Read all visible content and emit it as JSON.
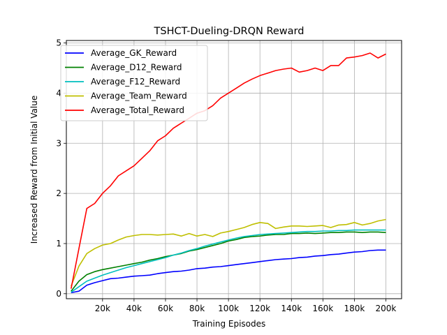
{
  "chart_data": {
    "type": "line",
    "title": "TSHCT-Dueling-DRQN Reward",
    "xlabel": "Training Episodes",
    "ylabel": "Increased Reward from Initial Value",
    "xlim": [
      -3000,
      210000
    ],
    "ylim": [
      -0.1,
      5.05
    ],
    "x_ticks": [
      {
        "value": 20000,
        "label": "20k"
      },
      {
        "value": 40000,
        "label": "40k"
      },
      {
        "value": 60000,
        "label": "60k"
      },
      {
        "value": 80000,
        "label": "80k"
      },
      {
        "value": 100000,
        "label": "100k"
      },
      {
        "value": 120000,
        "label": "120k"
      },
      {
        "value": 140000,
        "label": "140k"
      },
      {
        "value": 160000,
        "label": "160k"
      },
      {
        "value": 180000,
        "label": "180k"
      },
      {
        "value": 200000,
        "label": "200k"
      }
    ],
    "y_ticks": [
      {
        "value": 0,
        "label": "0"
      },
      {
        "value": 1,
        "label": "1"
      },
      {
        "value": 2,
        "label": "2"
      },
      {
        "value": 3,
        "label": "3"
      },
      {
        "value": 4,
        "label": "4"
      },
      {
        "value": 5,
        "label": "5"
      }
    ],
    "grid": true,
    "legend_position": "top-left",
    "x": [
      0,
      5000,
      10000,
      15000,
      20000,
      25000,
      30000,
      35000,
      40000,
      45000,
      50000,
      55000,
      60000,
      65000,
      70000,
      75000,
      80000,
      85000,
      90000,
      95000,
      100000,
      105000,
      110000,
      115000,
      120000,
      125000,
      130000,
      135000,
      140000,
      145000,
      150000,
      155000,
      160000,
      165000,
      170000,
      175000,
      180000,
      185000,
      190000,
      195000,
      200000
    ],
    "series": [
      {
        "name": "Average_GK_Reward",
        "color": "#0000ff",
        "values": [
          0.02,
          0.05,
          0.17,
          0.22,
          0.26,
          0.3,
          0.31,
          0.33,
          0.35,
          0.36,
          0.37,
          0.4,
          0.42,
          0.44,
          0.45,
          0.47,
          0.5,
          0.51,
          0.53,
          0.54,
          0.56,
          0.58,
          0.6,
          0.62,
          0.64,
          0.66,
          0.68,
          0.69,
          0.7,
          0.72,
          0.73,
          0.75,
          0.76,
          0.78,
          0.79,
          0.81,
          0.83,
          0.84,
          0.86,
          0.87,
          0.87
        ]
      },
      {
        "name": "Average_D12_Reward",
        "color": "#008000",
        "values": [
          0.05,
          0.25,
          0.38,
          0.44,
          0.48,
          0.51,
          0.54,
          0.57,
          0.6,
          0.63,
          0.67,
          0.7,
          0.74,
          0.77,
          0.8,
          0.85,
          0.88,
          0.92,
          0.96,
          1.0,
          1.05,
          1.08,
          1.12,
          1.14,
          1.15,
          1.17,
          1.18,
          1.18,
          1.2,
          1.2,
          1.21,
          1.2,
          1.21,
          1.22,
          1.22,
          1.23,
          1.23,
          1.22,
          1.23,
          1.23,
          1.22
        ]
      },
      {
        "name": "Average_F12_Reward",
        "color": "#00bfbf",
        "values": [
          0.03,
          0.14,
          0.25,
          0.31,
          0.37,
          0.42,
          0.47,
          0.52,
          0.56,
          0.6,
          0.64,
          0.68,
          0.72,
          0.77,
          0.81,
          0.86,
          0.9,
          0.95,
          0.99,
          1.03,
          1.07,
          1.11,
          1.14,
          1.16,
          1.18,
          1.19,
          1.2,
          1.21,
          1.22,
          1.23,
          1.24,
          1.24,
          1.25,
          1.25,
          1.26,
          1.26,
          1.27,
          1.27,
          1.27,
          1.27,
          1.27
        ]
      },
      {
        "name": "Average_Team_Reward",
        "color": "#bfbf00",
        "values": [
          0.15,
          0.55,
          0.8,
          0.9,
          0.97,
          1.0,
          1.07,
          1.13,
          1.16,
          1.18,
          1.18,
          1.17,
          1.18,
          1.19,
          1.15,
          1.2,
          1.15,
          1.18,
          1.14,
          1.21,
          1.24,
          1.28,
          1.32,
          1.38,
          1.42,
          1.4,
          1.3,
          1.33,
          1.35,
          1.35,
          1.34,
          1.35,
          1.36,
          1.32,
          1.37,
          1.38,
          1.42,
          1.37,
          1.4,
          1.45,
          1.48
        ]
      },
      {
        "name": "Average_Total_Reward",
        "color": "#ff0000",
        "values": [
          0.1,
          0.9,
          1.7,
          1.8,
          2.0,
          2.15,
          2.35,
          2.45,
          2.55,
          2.7,
          2.85,
          3.05,
          3.15,
          3.3,
          3.4,
          3.5,
          3.6,
          3.65,
          3.75,
          3.9,
          4.0,
          4.1,
          4.2,
          4.28,
          4.35,
          4.4,
          4.45,
          4.48,
          4.5,
          4.42,
          4.45,
          4.5,
          4.45,
          4.55,
          4.55,
          4.7,
          4.72,
          4.75,
          4.8,
          4.7,
          4.78
        ]
      }
    ]
  }
}
